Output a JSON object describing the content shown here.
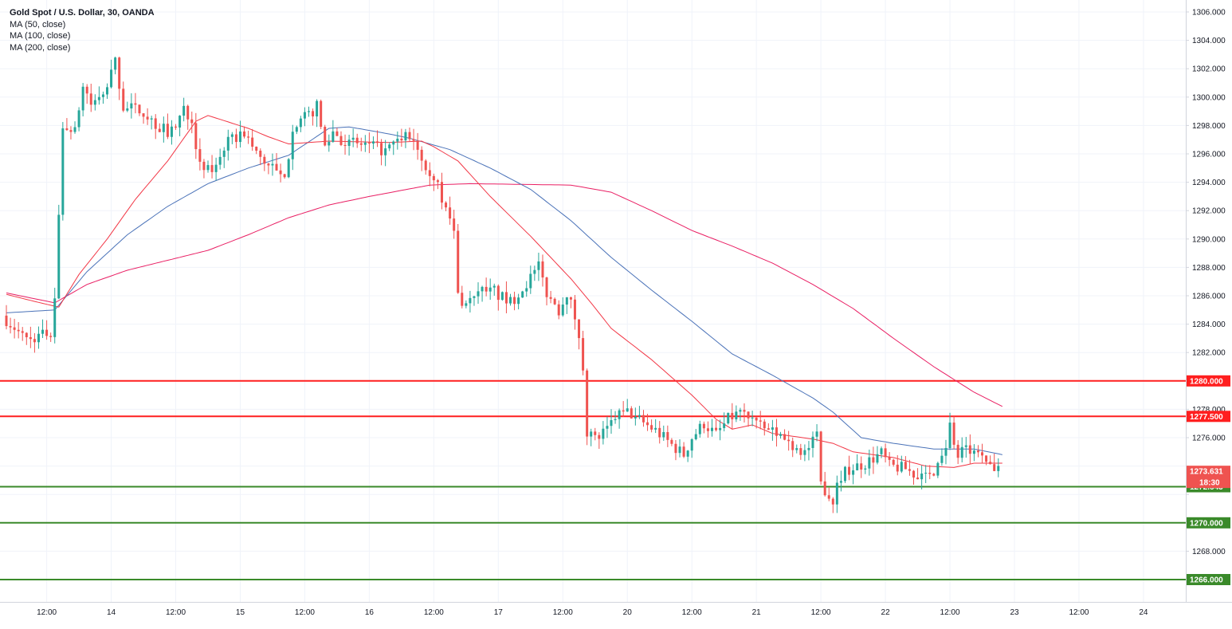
{
  "legend": {
    "title": "Gold Spot / U.S. Dollar, 30, OANDA",
    "ma50": "MA (50, close)",
    "ma100": "MA (100, close)",
    "ma200": "MA (200, close)"
  },
  "colors": {
    "up": "#26a69a",
    "down": "#ef5350",
    "ma50": "#f23645",
    "ma100": "#4a72b8",
    "ma200": "#e91e63",
    "resistance": "#ff1f1f",
    "support": "#3a8a2a",
    "grid": "#f0f3fa",
    "axis": "#9598a1",
    "text": "#131722"
  },
  "chart_data": {
    "type": "candlestick",
    "symbol": "Gold Spot / U.S. Dollar",
    "interval": "30",
    "source": "OANDA",
    "ylim": [
      1264.0,
      1307.0
    ],
    "y_ticks": [
      1306,
      1304,
      1302,
      1300,
      1298,
      1296,
      1294,
      1292,
      1290,
      1288,
      1286,
      1284,
      1282,
      1280,
      1278,
      1276,
      1274,
      1272,
      1270,
      1268,
      1266
    ],
    "y_tick_labels": [
      "1306.000",
      "1304.000",
      "1302.000",
      "1300.000",
      "1298.000",
      "1296.000",
      "1294.000",
      "1292.000",
      "1290.000",
      "1288.000",
      "1286.000",
      "1284.000",
      "1282.000",
      "1280.000",
      "1278.000",
      "1276.000",
      "1274.000",
      "1272.000",
      "1270.000",
      "1268.000",
      "1266.000"
    ],
    "x_range_bars": [
      0,
      290
    ],
    "x_labels": [
      {
        "bar": 10,
        "label": "12:00"
      },
      {
        "bar": 26,
        "label": "14"
      },
      {
        "bar": 42,
        "label": "12:00"
      },
      {
        "bar": 58,
        "label": "15"
      },
      {
        "bar": 74,
        "label": "12:00"
      },
      {
        "bar": 90,
        "label": "16"
      },
      {
        "bar": 106,
        "label": "12:00"
      },
      {
        "bar": 122,
        "label": "17"
      },
      {
        "bar": 138,
        "label": "12:00"
      },
      {
        "bar": 154,
        "label": "20"
      },
      {
        "bar": 170,
        "label": "12:00"
      },
      {
        "bar": 186,
        "label": "21"
      },
      {
        "bar": 202,
        "label": "12:00"
      },
      {
        "bar": 218,
        "label": "22"
      },
      {
        "bar": 234,
        "label": "12:00"
      },
      {
        "bar": 250,
        "label": "23"
      },
      {
        "bar": 266,
        "label": "12:00"
      },
      {
        "bar": 282,
        "label": "24"
      }
    ],
    "price_keys": [
      [
        0,
        1284.6
      ],
      [
        6,
        1282.9
      ],
      [
        12,
        1283.4
      ],
      [
        13,
        1286.0
      ],
      [
        14,
        1291.5
      ],
      [
        15,
        1298.0
      ],
      [
        18,
        1297.5
      ],
      [
        20,
        1300.8
      ],
      [
        22,
        1299.5
      ],
      [
        25,
        1300.0
      ],
      [
        28,
        1302.5
      ],
      [
        30,
        1299.3
      ],
      [
        35,
        1299.0
      ],
      [
        38,
        1298.0
      ],
      [
        42,
        1297.5
      ],
      [
        45,
        1299.2
      ],
      [
        47,
        1298.5
      ],
      [
        49,
        1295.0
      ],
      [
        52,
        1294.8
      ],
      [
        55,
        1296.5
      ],
      [
        57,
        1297.0
      ],
      [
        60,
        1297.5
      ],
      [
        63,
        1296.0
      ],
      [
        67,
        1295.0
      ],
      [
        70,
        1294.0
      ],
      [
        72,
        1298.0
      ],
      [
        75,
        1298.5
      ],
      [
        78,
        1299.3
      ],
      [
        80,
        1296.5
      ],
      [
        82,
        1297.6
      ],
      [
        85,
        1296.8
      ],
      [
        90,
        1296.6
      ],
      [
        95,
        1296.2
      ],
      [
        100,
        1297.2
      ],
      [
        102,
        1297.0
      ],
      [
        105,
        1295.3
      ],
      [
        108,
        1294.0
      ],
      [
        110,
        1292.0
      ],
      [
        112,
        1290.5
      ],
      [
        113,
        1286.0
      ],
      [
        115,
        1285.4
      ],
      [
        118,
        1286.4
      ],
      [
        122,
        1286.2
      ],
      [
        126,
        1285.5
      ],
      [
        130,
        1286.9
      ],
      [
        133,
        1288.0
      ],
      [
        135,
        1286.2
      ],
      [
        138,
        1285.0
      ],
      [
        140,
        1286.3
      ],
      [
        142,
        1284.5
      ],
      [
        144,
        1281.0
      ],
      [
        145,
        1276.5
      ],
      [
        147,
        1275.9
      ],
      [
        150,
        1276.5
      ],
      [
        152,
        1277.5
      ],
      [
        155,
        1277.8
      ],
      [
        158,
        1277.2
      ],
      [
        162,
        1276.5
      ],
      [
        166,
        1275.5
      ],
      [
        169,
        1274.8
      ],
      [
        171,
        1276.0
      ],
      [
        174,
        1277.0
      ],
      [
        177,
        1276.2
      ],
      [
        180,
        1277.3
      ],
      [
        183,
        1277.8
      ],
      [
        186,
        1277.4
      ],
      [
        188,
        1276.7
      ],
      [
        192,
        1276.3
      ],
      [
        196,
        1275.5
      ],
      [
        199,
        1275.0
      ],
      [
        202,
        1276.0
      ],
      [
        203,
        1272.8
      ],
      [
        206,
        1271.5
      ],
      [
        207,
        1273.0
      ],
      [
        210,
        1273.8
      ],
      [
        214,
        1274.2
      ],
      [
        218,
        1274.9
      ],
      [
        220,
        1274.0
      ],
      [
        224,
        1273.8
      ],
      [
        228,
        1273.1
      ],
      [
        232,
        1274.2
      ],
      [
        234,
        1275.5
      ],
      [
        235,
        1276.9
      ],
      [
        237,
        1274.5
      ],
      [
        239,
        1275.5
      ],
      [
        240,
        1275.1
      ],
      [
        243,
        1274.5
      ],
      [
        246,
        1273.6
      ]
    ],
    "ma50_keys": [
      [
        0,
        1286.1
      ],
      [
        7,
        1285.6
      ],
      [
        13,
        1285.2
      ],
      [
        18,
        1287.5
      ],
      [
        25,
        1290.0
      ],
      [
        32,
        1292.8
      ],
      [
        40,
        1295.5
      ],
      [
        47,
        1298.3
      ],
      [
        50,
        1298.7
      ],
      [
        60,
        1297.8
      ],
      [
        65,
        1297.2
      ],
      [
        70,
        1296.7
      ],
      [
        80,
        1296.9
      ],
      [
        95,
        1296.8
      ],
      [
        103,
        1296.9
      ],
      [
        106,
        1296.5
      ],
      [
        112,
        1295.5
      ],
      [
        120,
        1293.0
      ],
      [
        130,
        1290.2
      ],
      [
        140,
        1287.2
      ],
      [
        145,
        1285.5
      ],
      [
        150,
        1283.7
      ],
      [
        160,
        1281.5
      ],
      [
        170,
        1279.0
      ],
      [
        176,
        1277.3
      ],
      [
        180,
        1276.6
      ],
      [
        185,
        1276.9
      ],
      [
        190,
        1276.3
      ],
      [
        200,
        1275.9
      ],
      [
        205,
        1275.6
      ],
      [
        210,
        1275.0
      ],
      [
        220,
        1274.6
      ],
      [
        228,
        1274.0
      ],
      [
        235,
        1273.9
      ],
      [
        240,
        1274.2
      ],
      [
        247,
        1274.2
      ]
    ],
    "ma100_keys": [
      [
        0,
        1284.8
      ],
      [
        12,
        1285.0
      ],
      [
        20,
        1287.7
      ],
      [
        30,
        1290.3
      ],
      [
        40,
        1292.3
      ],
      [
        50,
        1293.9
      ],
      [
        60,
        1295.0
      ],
      [
        70,
        1295.9
      ],
      [
        80,
        1297.8
      ],
      [
        85,
        1297.9
      ],
      [
        95,
        1297.4
      ],
      [
        100,
        1297.1
      ],
      [
        110,
        1296.3
      ],
      [
        120,
        1295.0
      ],
      [
        130,
        1293.5
      ],
      [
        140,
        1291.3
      ],
      [
        150,
        1288.7
      ],
      [
        160,
        1286.4
      ],
      [
        170,
        1284.2
      ],
      [
        180,
        1281.9
      ],
      [
        190,
        1280.4
      ],
      [
        200,
        1278.8
      ],
      [
        205,
        1277.8
      ],
      [
        212,
        1276.0
      ],
      [
        220,
        1275.6
      ],
      [
        230,
        1275.2
      ],
      [
        240,
        1275.2
      ],
      [
        247,
        1274.8
      ]
    ],
    "ma200_keys": [
      [
        0,
        1286.2
      ],
      [
        12,
        1285.5
      ],
      [
        20,
        1286.8
      ],
      [
        30,
        1287.8
      ],
      [
        40,
        1288.5
      ],
      [
        50,
        1289.2
      ],
      [
        60,
        1290.3
      ],
      [
        70,
        1291.5
      ],
      [
        80,
        1292.4
      ],
      [
        90,
        1293.0
      ],
      [
        105,
        1293.8
      ],
      [
        115,
        1293.9
      ],
      [
        140,
        1293.8
      ],
      [
        150,
        1293.3
      ],
      [
        160,
        1292.0
      ],
      [
        170,
        1290.6
      ],
      [
        180,
        1289.5
      ],
      [
        190,
        1288.3
      ],
      [
        200,
        1286.8
      ],
      [
        210,
        1285.1
      ],
      [
        220,
        1283.0
      ],
      [
        230,
        1281.0
      ],
      [
        240,
        1279.2
      ],
      [
        247,
        1278.2
      ]
    ],
    "candle_count": 247,
    "horizontal_levels": [
      {
        "value": 1280.0,
        "label": "1280.000",
        "kind": "resistance"
      },
      {
        "value": 1277.5,
        "label": "1277.500",
        "kind": "resistance"
      },
      {
        "value": 1272.543,
        "label": "1272.543",
        "kind": "support"
      },
      {
        "value": 1270.0,
        "label": "1270.000",
        "kind": "support"
      },
      {
        "value": 1266.0,
        "label": "1266.000",
        "kind": "support"
      }
    ],
    "last_price": {
      "value": 1273.631,
      "label": "1273.631",
      "countdown": "18:30"
    }
  }
}
